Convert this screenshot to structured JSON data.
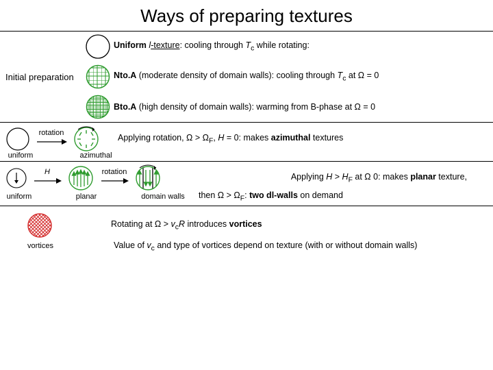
{
  "title": "Ways of preparing textures",
  "colors": {
    "text": "#000000",
    "bg": "#ffffff",
    "green": "#2e9b2e",
    "red": "#d42f2f",
    "black": "#000000"
  },
  "section1": {
    "side_label": "Initial preparation",
    "row1": {
      "label_html": "<b>Uniform</b> <i>l</i><u>-texture</u>: cooling through <i>T</i><sub>c</sub> while rotating:",
      "icon": {
        "type": "empty-circle",
        "r": 18,
        "stroke": "#000000"
      }
    },
    "row2": {
      "label_html": "<b>Nto.A</b> (moderate density of domain walls): cooling through <i>T</i><sub>c</sub> at &Omega; = 0",
      "icon": {
        "type": "hatched-circle",
        "r": 17,
        "stroke": "#2e9b2e",
        "hatch": "sparse"
      }
    },
    "row3": {
      "label_html": "<b>Bto.A</b> (high density of domain walls): warming from B-phase at &Omega; = 0",
      "icon": {
        "type": "hatched-circle",
        "r": 17,
        "stroke": "#2e9b2e",
        "hatch": "dense"
      }
    }
  },
  "section2": {
    "arrow_label": "rotation",
    "icon_left": {
      "type": "empty-circle",
      "r": 18,
      "stroke": "#000000"
    },
    "icon_right": {
      "type": "azimuthal",
      "r": 18,
      "stroke": "#2e9b2e"
    },
    "label_left": "uniform",
    "label_right": "azimuthal",
    "desc_html": "Applying rotation, &Omega; &gt; &Omega;<sub>F</sub>, <i>H</i> = 0: makes <b>azimuthal</b> textures"
  },
  "section3": {
    "arrow1_label": "H",
    "arrow1_style": "italic",
    "arrow2_label": "rotation",
    "icon_uniform": {
      "type": "arrow-down-circle",
      "r": 16,
      "stroke": "#000000"
    },
    "icon_planar": {
      "type": "arrows-up-circle",
      "r": 18,
      "stroke": "#2e9b2e"
    },
    "icon_domain": {
      "type": "domain-walls",
      "r": 18,
      "stroke": "#2e9b2e"
    },
    "label_uniform": "uniform",
    "label_planar": "planar",
    "label_domain": "domain walls",
    "desc1_html": "Applying <i>H</i> &gt; <i>H</i><sub>F</sub> at &Omega;  0:  makes <b>planar</b> texture,",
    "desc2_html": "then &Omega; &gt; &Omega;<sub>F</sub>: <b>two dl-walls</b> on demand"
  },
  "section4": {
    "icon_vortices": {
      "type": "vortices",
      "r": 18,
      "stroke": "#d42f2f"
    },
    "label_vortices": "vortices",
    "desc1_html": "Rotating at  &Omega; &gt; <i>v</i><sub>c</sub><i>R</i>  introduces <b>vortices</b>",
    "desc2_html": "Value of <i>v</i><sub>c</sub> and type of vortices depend on texture (with or without domain walls)"
  },
  "typography": {
    "title_fontsize": 26,
    "body_fontsize": 12.5,
    "label_fontsize": 11
  }
}
